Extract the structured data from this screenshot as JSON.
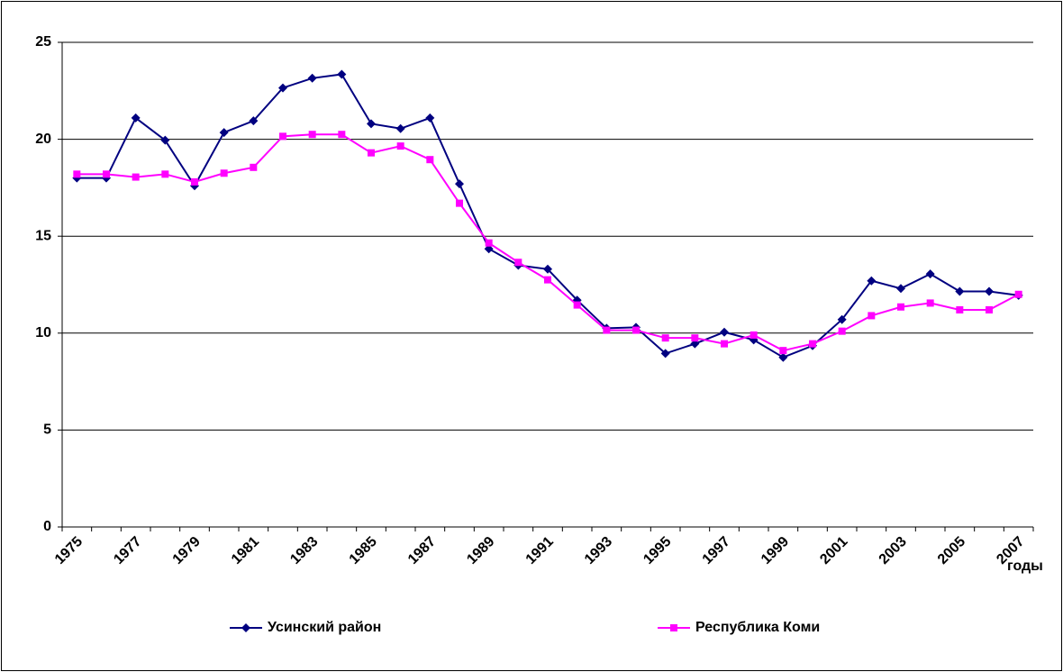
{
  "chart_data": {
    "type": "line",
    "x_label": "годы",
    "categories": [
      "1975",
      null,
      "1977",
      null,
      "1979",
      null,
      "1981",
      null,
      "1983",
      null,
      "1985",
      null,
      "1987",
      null,
      "1989",
      null,
      "1991",
      null,
      "1993",
      null,
      "1995",
      null,
      "1997",
      null,
      "1999",
      null,
      "2001",
      null,
      "2003",
      null,
      "2005",
      null,
      "2007"
    ],
    "series": [
      {
        "name": "Усинский район",
        "color": "#000080",
        "marker": "diamond",
        "values": [
          18.0,
          18.0,
          21.1,
          19.95,
          17.6,
          20.35,
          20.95,
          22.65,
          23.15,
          23.35,
          20.8,
          20.55,
          21.1,
          17.7,
          14.35,
          13.5,
          13.3,
          11.7,
          10.25,
          10.3,
          8.95,
          9.45,
          10.05,
          9.65,
          8.75,
          9.35,
          10.7,
          12.7,
          12.3,
          13.05,
          12.15,
          12.15,
          11.95
        ]
      },
      {
        "name": "Республика Коми",
        "color": "#ff00ff",
        "marker": "square",
        "values": [
          18.2,
          18.2,
          18.05,
          18.2,
          17.8,
          18.25,
          18.55,
          20.15,
          20.25,
          20.25,
          19.3,
          19.65,
          18.95,
          16.7,
          14.65,
          13.65,
          12.75,
          11.45,
          10.15,
          10.15,
          9.75,
          9.75,
          9.45,
          9.9,
          9.1,
          9.45,
          10.1,
          10.9,
          11.35,
          11.55,
          11.2,
          11.2,
          12.0
        ]
      }
    ],
    "ylim": [
      0,
      25
    ],
    "yticks": [
      0,
      5,
      10,
      15,
      20,
      25
    ],
    "grid": true,
    "legend": "bottom"
  }
}
